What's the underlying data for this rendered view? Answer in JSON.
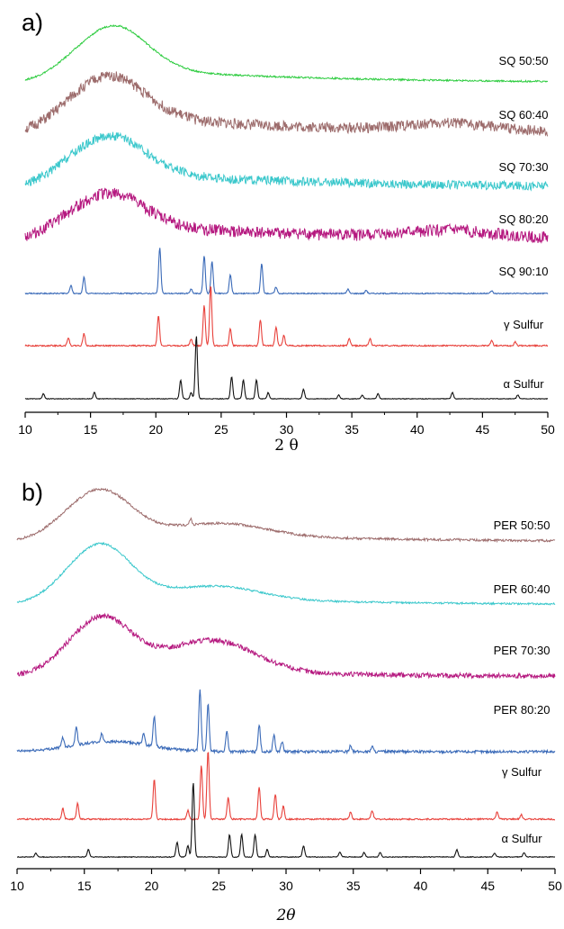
{
  "chart_data": [
    {
      "panel": "a)",
      "type": "line",
      "xlabel": "2 θ",
      "xlim": [
        10,
        50
      ],
      "xticks": [
        "10",
        "15",
        "20",
        "25",
        "30",
        "35",
        "40",
        "45",
        "50"
      ],
      "yaxis": "stacked offset traces (no y scale shown)",
      "series": [
        {
          "name": "SQ 50:50",
          "color": "#2ecc40",
          "shape": "amorphous",
          "hump_x": 16.8,
          "hump_height": 0.55,
          "hump_width": 3.6,
          "second_hump_x": null,
          "noise": 0.01,
          "tail": 0.12,
          "peaks": []
        },
        {
          "name": "SQ 60:40",
          "color": "#9c6b6b",
          "shape": "amorphous",
          "hump_x": 16.5,
          "hump_height": 0.5,
          "hump_width": 3.8,
          "second_hump_x": 42.5,
          "noise": 0.06,
          "tail": 0.14,
          "peaks": []
        },
        {
          "name": "SQ 70:30",
          "color": "#3cc8cc",
          "shape": "amorphous",
          "hump_x": 16.5,
          "hump_height": 0.45,
          "hump_width": 3.8,
          "second_hump_x": null,
          "noise": 0.05,
          "tail": 0.12,
          "peaks": []
        },
        {
          "name": "SQ 80:20",
          "color": "#b5187f",
          "shape": "amorphous",
          "hump_x": 16.5,
          "hump_height": 0.42,
          "hump_width": 3.8,
          "second_hump_x": 42.5,
          "noise": 0.07,
          "tail": 0.12,
          "peaks": []
        },
        {
          "name": "SQ 90:10",
          "color": "#3a6ab8",
          "shape": "crystalline",
          "noise": 0.01,
          "peaks": [
            [
              13.5,
              0.15
            ],
            [
              14.5,
              0.3
            ],
            [
              20.3,
              0.85
            ],
            [
              22.7,
              0.08
            ],
            [
              23.7,
              0.7
            ],
            [
              24.3,
              0.6
            ],
            [
              25.7,
              0.35
            ],
            [
              28.1,
              0.55
            ],
            [
              29.2,
              0.12
            ],
            [
              34.7,
              0.08
            ],
            [
              36.1,
              0.06
            ],
            [
              45.7,
              0.05
            ]
          ]
        },
        {
          "name": "γ Sulfur",
          "color": "#e8403a",
          "shape": "crystalline",
          "noise": 0.01,
          "peaks": [
            [
              13.3,
              0.12
            ],
            [
              14.5,
              0.18
            ],
            [
              20.2,
              0.45
            ],
            [
              22.7,
              0.1
            ],
            [
              23.7,
              0.6
            ],
            [
              24.2,
              0.9
            ],
            [
              25.7,
              0.25
            ],
            [
              28.0,
              0.38
            ],
            [
              29.2,
              0.28
            ],
            [
              29.8,
              0.15
            ],
            [
              34.8,
              0.1
            ],
            [
              36.4,
              0.1
            ],
            [
              45.7,
              0.08
            ],
            [
              47.5,
              0.06
            ]
          ]
        },
        {
          "name": "α Sulfur",
          "color": "#111111",
          "shape": "crystalline",
          "noise": 0.005,
          "peaks": [
            [
              11.4,
              0.08
            ],
            [
              15.3,
              0.1
            ],
            [
              21.9,
              0.3
            ],
            [
              22.7,
              0.1
            ],
            [
              23.1,
              1.0
            ],
            [
              25.8,
              0.35
            ],
            [
              26.7,
              0.3
            ],
            [
              27.7,
              0.3
            ],
            [
              28.6,
              0.1
            ],
            [
              31.3,
              0.15
            ],
            [
              34.0,
              0.06
            ],
            [
              35.8,
              0.06
            ],
            [
              37.0,
              0.08
            ],
            [
              42.7,
              0.1
            ],
            [
              47.7,
              0.06
            ]
          ]
        }
      ]
    },
    {
      "panel": "b)",
      "type": "line",
      "xlabel": "2θ",
      "xlim": [
        10,
        50
      ],
      "xticks": [
        "10",
        "15",
        "20",
        "25",
        "30",
        "35",
        "40",
        "45",
        "50"
      ],
      "yaxis": "stacked offset traces (no y scale shown)",
      "series": [
        {
          "name": "PER 50:50",
          "color": "#9c6b6b",
          "shape": "amorphous",
          "hump_x": 16.2,
          "hump_height": 0.75,
          "hump_width": 3.2,
          "second_hump_x": 25.5,
          "second_hump_height": 0.2,
          "noise": 0.02,
          "tail": 0.15,
          "peaks": [
            [
              22.9,
              0.1
            ],
            [
              42.7,
              0.03
            ]
          ]
        },
        {
          "name": "PER 60:40",
          "color": "#3cc8cc",
          "shape": "amorphous",
          "hump_x": 16.2,
          "hump_height": 0.85,
          "hump_width": 3.2,
          "second_hump_x": 25.0,
          "second_hump_height": 0.2,
          "noise": 0.015,
          "tail": 0.12,
          "peaks": []
        },
        {
          "name": "PER 70:30",
          "color": "#b5187f",
          "shape": "amorphous",
          "hump_x": 16.3,
          "hump_height": 0.85,
          "hump_width": 3.2,
          "second_hump_x": 24.5,
          "second_hump_height": 0.5,
          "noise": 0.04,
          "tail": 0.1,
          "peaks": []
        },
        {
          "name": "PER 80:20",
          "color": "#3a6ab8",
          "shape": "crystalline",
          "noise": 0.02,
          "hump_x": 17,
          "hump_height": 0.15,
          "hump_width": 4,
          "peaks": [
            [
              13.4,
              0.15
            ],
            [
              14.4,
              0.28
            ],
            [
              16.3,
              0.12
            ],
            [
              19.4,
              0.18
            ],
            [
              20.2,
              0.45
            ],
            [
              23.6,
              0.9
            ],
            [
              24.2,
              0.7
            ],
            [
              25.6,
              0.3
            ],
            [
              28.0,
              0.4
            ],
            [
              29.1,
              0.25
            ],
            [
              29.7,
              0.15
            ],
            [
              34.8,
              0.1
            ],
            [
              36.4,
              0.08
            ]
          ]
        },
        {
          "name": "γ Sulfur",
          "color": "#e8403a",
          "shape": "crystalline",
          "noise": 0.01,
          "peaks": [
            [
              13.4,
              0.15
            ],
            [
              14.5,
              0.22
            ],
            [
              20.2,
              0.55
            ],
            [
              22.7,
              0.12
            ],
            [
              23.7,
              0.75
            ],
            [
              24.2,
              0.95
            ],
            [
              25.7,
              0.3
            ],
            [
              28.0,
              0.45
            ],
            [
              29.2,
              0.35
            ],
            [
              29.8,
              0.18
            ],
            [
              34.8,
              0.1
            ],
            [
              36.4,
              0.12
            ],
            [
              45.7,
              0.1
            ],
            [
              47.5,
              0.06
            ]
          ]
        },
        {
          "name": "α Sulfur",
          "color": "#111111",
          "shape": "crystalline",
          "noise": 0.005,
          "peaks": [
            [
              11.4,
              0.05
            ],
            [
              15.3,
              0.1
            ],
            [
              21.9,
              0.2
            ],
            [
              22.7,
              0.15
            ],
            [
              23.1,
              1.0
            ],
            [
              25.8,
              0.3
            ],
            [
              26.7,
              0.3
            ],
            [
              27.7,
              0.3
            ],
            [
              28.6,
              0.1
            ],
            [
              31.3,
              0.15
            ],
            [
              34.0,
              0.06
            ],
            [
              35.8,
              0.06
            ],
            [
              37.0,
              0.06
            ],
            [
              42.7,
              0.1
            ],
            [
              45.5,
              0.05
            ],
            [
              47.7,
              0.06
            ]
          ]
        }
      ]
    }
  ]
}
